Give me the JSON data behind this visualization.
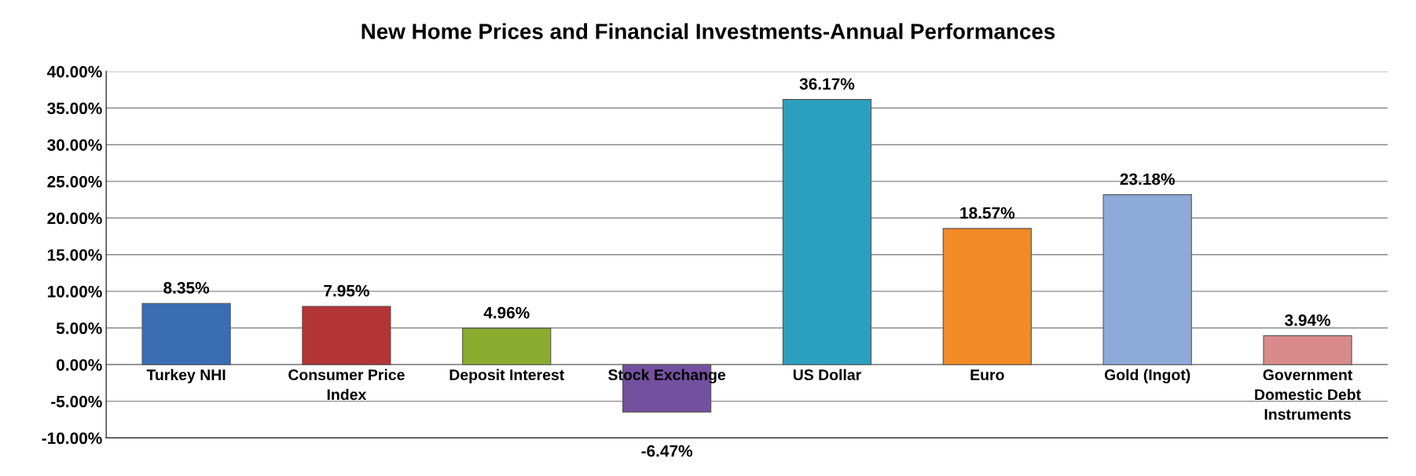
{
  "chart_data": {
    "type": "bar",
    "title": "New Home Prices and Financial Investments-Annual Performances",
    "categories": [
      "Turkey NHI",
      "Consumer Price\nIndex",
      "Deposit Interest",
      "Stock Exchange",
      "US Dollar",
      "Euro",
      "Gold (Ingot)",
      "Government\nDomestic Debt\nInstruments"
    ],
    "values": [
      8.35,
      7.95,
      4.96,
      -6.47,
      36.17,
      18.57,
      23.18,
      3.94
    ],
    "colors": [
      "#3a6db3",
      "#b33434",
      "#8aac2f",
      "#7450a0",
      "#2ba0be",
      "#f28a26",
      "#8eaadb",
      "#d98b8b"
    ],
    "value_labels": [
      "8.35%",
      "7.95%",
      "4.96%",
      "-6.47%",
      "36.17%",
      "18.57%",
      "23.18%",
      "3.94%"
    ],
    "ylim": [
      -10,
      40
    ],
    "yticks": [
      {
        "value": -10,
        "label": "-10.00%"
      },
      {
        "value": -5,
        "label": "-5.00%"
      },
      {
        "value": 0,
        "label": "0.00%"
      },
      {
        "value": 5,
        "label": "5.00%"
      },
      {
        "value": 10,
        "label": "10.00%"
      },
      {
        "value": 15,
        "label": "15.00%"
      },
      {
        "value": 20,
        "label": "20.00%"
      },
      {
        "value": 25,
        "label": "25.00%"
      },
      {
        "value": 30,
        "label": "30.00%"
      },
      {
        "value": 35,
        "label": "35.00%"
      },
      {
        "value": 40,
        "label": "40.00%"
      }
    ],
    "grid": "y"
  }
}
